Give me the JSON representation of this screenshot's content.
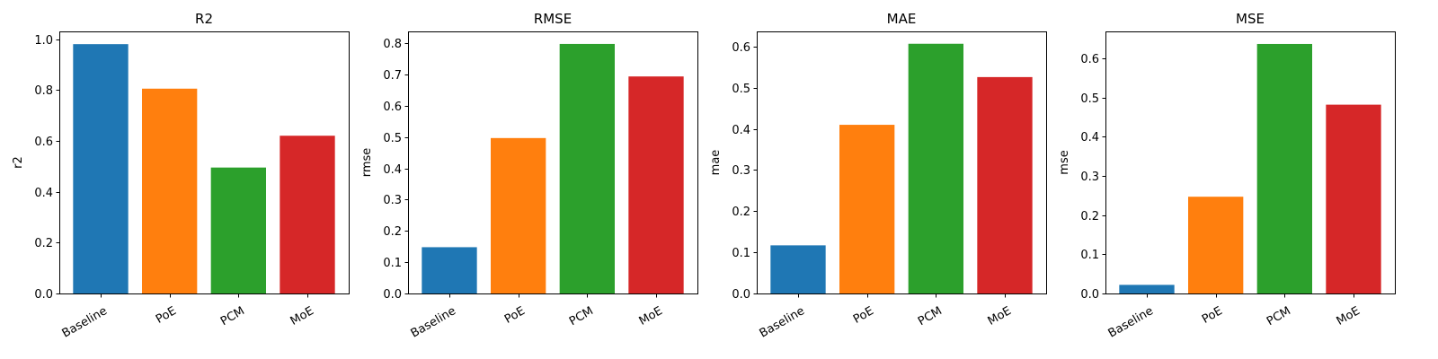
{
  "figure": {
    "background": "#ffffff"
  },
  "chart_data": [
    {
      "type": "bar",
      "title": "R2",
      "xlabel": "",
      "ylabel": "r2",
      "categories": [
        "Baseline",
        "PoE",
        "PCM",
        "MoE"
      ],
      "values": [
        0.98,
        0.805,
        0.495,
        0.62
      ],
      "colors": [
        "#1f77b4",
        "#ff7f0e",
        "#2ca02c",
        "#d62728"
      ],
      "ylim": [
        0,
        1.03
      ],
      "yticks": [
        0.0,
        0.2,
        0.4,
        0.6,
        0.8,
        1.0
      ],
      "ytick_labels": [
        "0.0",
        "0.2",
        "0.4",
        "0.6",
        "0.8",
        "1.0"
      ],
      "grid": false
    },
    {
      "type": "bar",
      "title": "RMSE",
      "xlabel": "",
      "ylabel": "rmse",
      "categories": [
        "Baseline",
        "PoE",
        "PCM",
        "MoE"
      ],
      "values": [
        0.148,
        0.497,
        0.798,
        0.694
      ],
      "colors": [
        "#1f77b4",
        "#ff7f0e",
        "#2ca02c",
        "#d62728"
      ],
      "ylim": [
        0,
        0.838
      ],
      "yticks": [
        0.0,
        0.1,
        0.2,
        0.3,
        0.4,
        0.5,
        0.6,
        0.7,
        0.8
      ],
      "ytick_labels": [
        "0.0",
        "0.1",
        "0.2",
        "0.3",
        "0.4",
        "0.5",
        "0.6",
        "0.7",
        "0.8"
      ],
      "grid": false
    },
    {
      "type": "bar",
      "title": "MAE",
      "xlabel": "",
      "ylabel": "mae",
      "categories": [
        "Baseline",
        "PoE",
        "PCM",
        "MoE"
      ],
      "values": [
        0.117,
        0.41,
        0.607,
        0.526
      ],
      "colors": [
        "#1f77b4",
        "#ff7f0e",
        "#2ca02c",
        "#d62728"
      ],
      "ylim": [
        0,
        0.637
      ],
      "yticks": [
        0.0,
        0.1,
        0.2,
        0.3,
        0.4,
        0.5,
        0.6
      ],
      "ytick_labels": [
        "0.0",
        "0.1",
        "0.2",
        "0.3",
        "0.4",
        "0.5",
        "0.6"
      ],
      "grid": false
    },
    {
      "type": "bar",
      "title": "MSE",
      "xlabel": "",
      "ylabel": "mse",
      "categories": [
        "Baseline",
        "PoE",
        "PCM",
        "MoE"
      ],
      "values": [
        0.022,
        0.247,
        0.637,
        0.482
      ],
      "colors": [
        "#1f77b4",
        "#ff7f0e",
        "#2ca02c",
        "#d62728"
      ],
      "ylim": [
        0,
        0.669
      ],
      "yticks": [
        0.0,
        0.1,
        0.2,
        0.3,
        0.4,
        0.5,
        0.6
      ],
      "ytick_labels": [
        "0.0",
        "0.1",
        "0.2",
        "0.3",
        "0.4",
        "0.5",
        "0.6"
      ],
      "grid": false
    }
  ]
}
